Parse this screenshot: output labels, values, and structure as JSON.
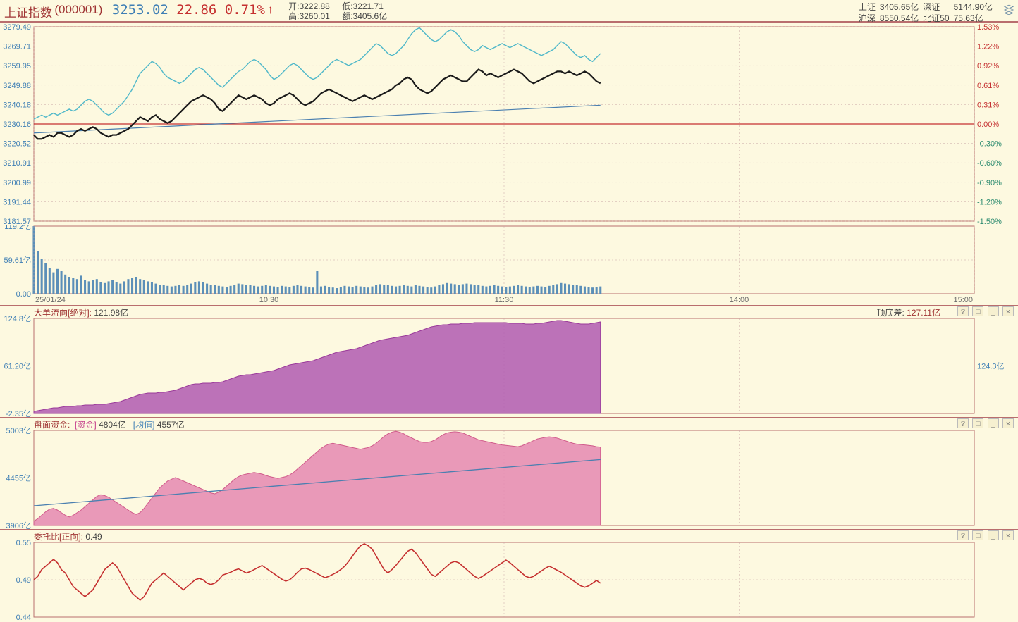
{
  "header": {
    "title": "上证指数",
    "code": "(000001)",
    "price": "3253.02",
    "change": "22.86",
    "change_pct": "0.71%",
    "arrow": "↑",
    "open_label": "开:",
    "open": "3222.88",
    "low_label": "低:",
    "low": "3221.71",
    "high_label": "高:",
    "high": "3260.01",
    "amt_label": "额:",
    "amt": "3405.6亿",
    "sh_label": "上证",
    "sh": "3405.65亿",
    "sz_label": "深证",
    "sz": "5144.90亿",
    "hs_label": "沪深",
    "hs": "8550.54亿",
    "bz_label": "北证50",
    "bz": "75.63亿"
  },
  "main_chart": {
    "type": "line",
    "bg": "#fdf9e0",
    "grid_color": "#c9a5a5",
    "zero_line_color": "#c53030",
    "series_black": {
      "color": "#1a1a1a",
      "width": 2.2
    },
    "series_cyan": {
      "color": "#4fb8c9",
      "width": 1.4
    },
    "series_blue": {
      "color": "#4a7fb0",
      "width": 1.2
    },
    "y_left_ticks": [
      "3279.49",
      "3269.71",
      "3259.95",
      "3249.88",
      "3240.18",
      "3230.16",
      "3220.52",
      "3210.91",
      "3200.99",
      "3191.44",
      "3181.57"
    ],
    "y_right_ticks": [
      "1.53%",
      "1.22%",
      "0.92%",
      "0.61%",
      "0.31%",
      "0.00%",
      "-0.30%",
      "-0.60%",
      "-0.90%",
      "-1.20%",
      "-1.50%"
    ],
    "zero_index": 5,
    "x_ticks": [
      "25/01/24",
      "10:30",
      "11:30",
      "14:00",
      "15:00"
    ],
    "n_points": 240,
    "data_fill": 0.608,
    "black_vals": [
      3225,
      3223,
      3223,
      3224,
      3225,
      3224,
      3226,
      3226,
      3225,
      3224,
      3225,
      3227,
      3228,
      3227,
      3228,
      3229,
      3228,
      3226,
      3225,
      3224,
      3225,
      3225,
      3226,
      3227,
      3228,
      3230,
      3232,
      3234,
      3233,
      3232,
      3234,
      3235,
      3233,
      3232,
      3231,
      3232,
      3234,
      3236,
      3238,
      3240,
      3242,
      3243,
      3244,
      3245,
      3244,
      3243,
      3241,
      3238,
      3237,
      3239,
      3241,
      3243,
      3245,
      3244,
      3243,
      3244,
      3245,
      3244,
      3243,
      3241,
      3240,
      3241,
      3243,
      3244,
      3245,
      3246,
      3245,
      3243,
      3241,
      3240,
      3241,
      3242,
      3244,
      3246,
      3247,
      3248,
      3247,
      3246,
      3245,
      3244,
      3243,
      3242,
      3243,
      3244,
      3245,
      3244,
      3243,
      3244,
      3245,
      3246,
      3247,
      3248,
      3250,
      3251,
      3253,
      3254,
      3253,
      3250,
      3248,
      3247,
      3246,
      3247,
      3249,
      3251,
      3253,
      3254,
      3255,
      3254,
      3253,
      3252,
      3252,
      3254,
      3256,
      3258,
      3257,
      3255,
      3256,
      3255,
      3254,
      3255,
      3256,
      3257,
      3258,
      3257,
      3256,
      3254,
      3252,
      3251,
      3252,
      3253,
      3254,
      3255,
      3256,
      3257,
      3257,
      3256,
      3257,
      3256,
      3255,
      3256,
      3257,
      3256,
      3254,
      3252,
      3251
    ],
    "cyan_vals": [
      3233,
      3234,
      3235,
      3234,
      3235,
      3236,
      3235,
      3236,
      3237,
      3238,
      3237,
      3238,
      3240,
      3242,
      3243,
      3242,
      3240,
      3238,
      3236,
      3235,
      3236,
      3238,
      3240,
      3242,
      3245,
      3248,
      3252,
      3256,
      3258,
      3260,
      3262,
      3261,
      3259,
      3256,
      3254,
      3253,
      3252,
      3251,
      3252,
      3254,
      3256,
      3258,
      3259,
      3258,
      3256,
      3254,
      3252,
      3250,
      3249,
      3251,
      3253,
      3255,
      3257,
      3258,
      3260,
      3262,
      3263,
      3262,
      3260,
      3258,
      3255,
      3253,
      3254,
      3256,
      3258,
      3260,
      3261,
      3260,
      3258,
      3256,
      3254,
      3253,
      3254,
      3256,
      3258,
      3260,
      3262,
      3263,
      3262,
      3261,
      3260,
      3261,
      3262,
      3263,
      3265,
      3267,
      3269,
      3271,
      3270,
      3268,
      3266,
      3265,
      3266,
      3268,
      3270,
      3273,
      3276,
      3278,
      3279,
      3277,
      3275,
      3273,
      3272,
      3273,
      3275,
      3277,
      3278,
      3277,
      3275,
      3272,
      3270,
      3268,
      3267,
      3268,
      3270,
      3269,
      3268,
      3269,
      3270,
      3271,
      3270,
      3269,
      3270,
      3271,
      3270,
      3269,
      3268,
      3267,
      3266,
      3265,
      3266,
      3267,
      3268,
      3270,
      3272,
      3271,
      3269,
      3267,
      3265,
      3264,
      3265,
      3263,
      3262,
      3264,
      3266
    ],
    "blue_start": 3226,
    "blue_end": 3240
  },
  "volume_chart": {
    "y_ticks": [
      "119.2亿",
      "59.61亿",
      "0.00"
    ],
    "bar_color": "#5b8fb8",
    "max": 120,
    "bars": [
      120,
      75,
      62,
      55,
      45,
      38,
      44,
      40,
      34,
      30,
      28,
      26,
      32,
      25,
      22,
      24,
      26,
      20,
      19,
      22,
      24,
      20,
      18,
      22,
      26,
      28,
      30,
      26,
      24,
      22,
      20,
      18,
      16,
      15,
      14,
      13,
      14,
      15,
      14,
      16,
      18,
      20,
      22,
      20,
      18,
      16,
      15,
      14,
      13,
      12,
      14,
      16,
      18,
      17,
      16,
      15,
      14,
      13,
      14,
      15,
      14,
      13,
      12,
      14,
      13,
      12,
      14,
      15,
      14,
      13,
      12,
      11,
      40,
      13,
      14,
      12,
      11,
      10,
      12,
      14,
      13,
      12,
      14,
      13,
      12,
      11,
      13,
      15,
      17,
      16,
      15,
      14,
      13,
      14,
      15,
      14,
      13,
      15,
      14,
      13,
      12,
      11,
      13,
      15,
      17,
      19,
      18,
      17,
      16,
      17,
      18,
      17,
      16,
      15,
      14,
      13,
      14,
      15,
      14,
      13,
      12,
      13,
      14,
      15,
      14,
      13,
      12,
      13,
      14,
      13,
      12,
      14,
      15,
      17,
      19,
      18,
      17,
      16,
      15,
      14,
      13,
      12,
      11,
      12,
      13
    ]
  },
  "panel2": {
    "title": "大单流向[绝对]:",
    "value": "121.98亿",
    "right_label": "顶底差:",
    "right_value": "127.11亿",
    "y_ticks": [
      "124.8亿",
      "61.20亿",
      "-2.35亿"
    ],
    "y_right_tick": "124.3亿",
    "fill_color": "#b05bb0",
    "border_color": "#9a3a9a",
    "ymin": -5,
    "ymax": 130,
    "vals": [
      -2,
      -1,
      0,
      1,
      2,
      3,
      3,
      4,
      5,
      5,
      5,
      6,
      6,
      7,
      7,
      7,
      8,
      8,
      8,
      9,
      10,
      11,
      12,
      14,
      16,
      18,
      20,
      22,
      23,
      24,
      24,
      24,
      25,
      25,
      26,
      27,
      28,
      30,
      32,
      34,
      36,
      37,
      37,
      38,
      38,
      38,
      39,
      39,
      40,
      42,
      44,
      46,
      48,
      49,
      50,
      50,
      51,
      52,
      53,
      54,
      55,
      56,
      58,
      60,
      62,
      64,
      65,
      66,
      67,
      68,
      69,
      70,
      72,
      74,
      76,
      78,
      80,
      82,
      83,
      84,
      85,
      86,
      87,
      89,
      91,
      93,
      95,
      97,
      99,
      100,
      101,
      102,
      103,
      104,
      105,
      106,
      108,
      110,
      112,
      114,
      116,
      118,
      119,
      120,
      121,
      121,
      122,
      122,
      122,
      123,
      123,
      123,
      124,
      124,
      124,
      124,
      124,
      124,
      124,
      124,
      124,
      123,
      123,
      123,
      123,
      122,
      122,
      122,
      123,
      123,
      124,
      125,
      126,
      127,
      127,
      126,
      125,
      124,
      123,
      122,
      122,
      122,
      123,
      124,
      125
    ]
  },
  "panel3": {
    "title": "盘面资金:",
    "series1_label": "[资金]",
    "series1_value": "4804亿",
    "series2_label": "[均值]",
    "series2_value": "4557亿",
    "y_ticks": [
      "5003亿",
      "4455亿",
      "3906亿"
    ],
    "fill_color": "#e588b0",
    "border_color": "#d05a8a",
    "line_color": "#4a7fb0",
    "ymin": 3900,
    "ymax": 5010,
    "vals": [
      3950,
      3980,
      4020,
      4060,
      4090,
      4100,
      4080,
      4050,
      4020,
      4000,
      4020,
      4050,
      4080,
      4120,
      4160,
      4200,
      4240,
      4260,
      4250,
      4230,
      4200,
      4170,
      4140,
      4110,
      4080,
      4050,
      4030,
      4050,
      4100,
      4160,
      4220,
      4280,
      4340,
      4380,
      4420,
      4440,
      4460,
      4440,
      4420,
      4400,
      4380,
      4360,
      4340,
      4320,
      4300,
      4280,
      4270,
      4290,
      4320,
      4360,
      4400,
      4440,
      4470,
      4490,
      4500,
      4510,
      4520,
      4510,
      4500,
      4485,
      4470,
      4460,
      4450,
      4460,
      4470,
      4490,
      4520,
      4560,
      4600,
      4640,
      4680,
      4720,
      4760,
      4800,
      4830,
      4850,
      4860,
      4850,
      4840,
      4830,
      4820,
      4810,
      4800,
      4790,
      4800,
      4810,
      4830,
      4860,
      4900,
      4940,
      4970,
      4990,
      5000,
      4990,
      4970,
      4945,
      4923,
      4900,
      4880,
      4870,
      4870,
      4880,
      4900,
      4930,
      4960,
      4980,
      4990,
      4995,
      4990,
      4980,
      4960,
      4940,
      4920,
      4900,
      4890,
      4880,
      4870,
      4860,
      4850,
      4840,
      4835,
      4830,
      4825,
      4820,
      4830,
      4850,
      4870,
      4890,
      4910,
      4920,
      4930,
      4935,
      4930,
      4920,
      4905,
      4890,
      4875,
      4860,
      4850,
      4845,
      4840,
      4835,
      4830,
      4820,
      4815
    ],
    "mean_start": 4130,
    "mean_end": 4670
  },
  "panel4": {
    "title": "委托比[正向]:",
    "value": "0.49",
    "y_ticks": [
      "0.55",
      "0.49",
      "0.44"
    ],
    "line_color": "#c53030",
    "ymin": 0.44,
    "ymax": 0.55,
    "vals": [
      0.495,
      0.5,
      0.51,
      0.515,
      0.52,
      0.525,
      0.52,
      0.51,
      0.505,
      0.495,
      0.485,
      0.48,
      0.475,
      0.47,
      0.475,
      0.48,
      0.49,
      0.5,
      0.51,
      0.515,
      0.52,
      0.515,
      0.505,
      0.495,
      0.485,
      0.475,
      0.47,
      0.465,
      0.47,
      0.48,
      0.49,
      0.495,
      0.5,
      0.505,
      0.5,
      0.495,
      0.49,
      0.485,
      0.48,
      0.485,
      0.49,
      0.495,
      0.497,
      0.495,
      0.49,
      0.488,
      0.49,
      0.495,
      0.502,
      0.504,
      0.506,
      0.509,
      0.511,
      0.508,
      0.505,
      0.507,
      0.51,
      0.513,
      0.516,
      0.512,
      0.508,
      0.504,
      0.5,
      0.496,
      0.493,
      0.495,
      0.5,
      0.506,
      0.511,
      0.512,
      0.51,
      0.507,
      0.504,
      0.501,
      0.498,
      0.5,
      0.503,
      0.506,
      0.51,
      0.515,
      0.522,
      0.53,
      0.538,
      0.545,
      0.548,
      0.545,
      0.54,
      0.53,
      0.52,
      0.51,
      0.505,
      0.51,
      0.516,
      0.523,
      0.53,
      0.537,
      0.54,
      0.535,
      0.527,
      0.519,
      0.511,
      0.503,
      0.5,
      0.505,
      0.51,
      0.515,
      0.52,
      0.522,
      0.52,
      0.515,
      0.51,
      0.505,
      0.5,
      0.497,
      0.5,
      0.504,
      0.508,
      0.512,
      0.516,
      0.52,
      0.524,
      0.52,
      0.515,
      0.51,
      0.505,
      0.5,
      0.498,
      0.5,
      0.504,
      0.508,
      0.512,
      0.515,
      0.512,
      0.509,
      0.506,
      0.502,
      0.498,
      0.494,
      0.49,
      0.486,
      0.484,
      0.486,
      0.49,
      0.494,
      0.49
    ]
  },
  "controls": {
    "help": "?",
    "sq": "□",
    "min": "_",
    "close": "×"
  }
}
